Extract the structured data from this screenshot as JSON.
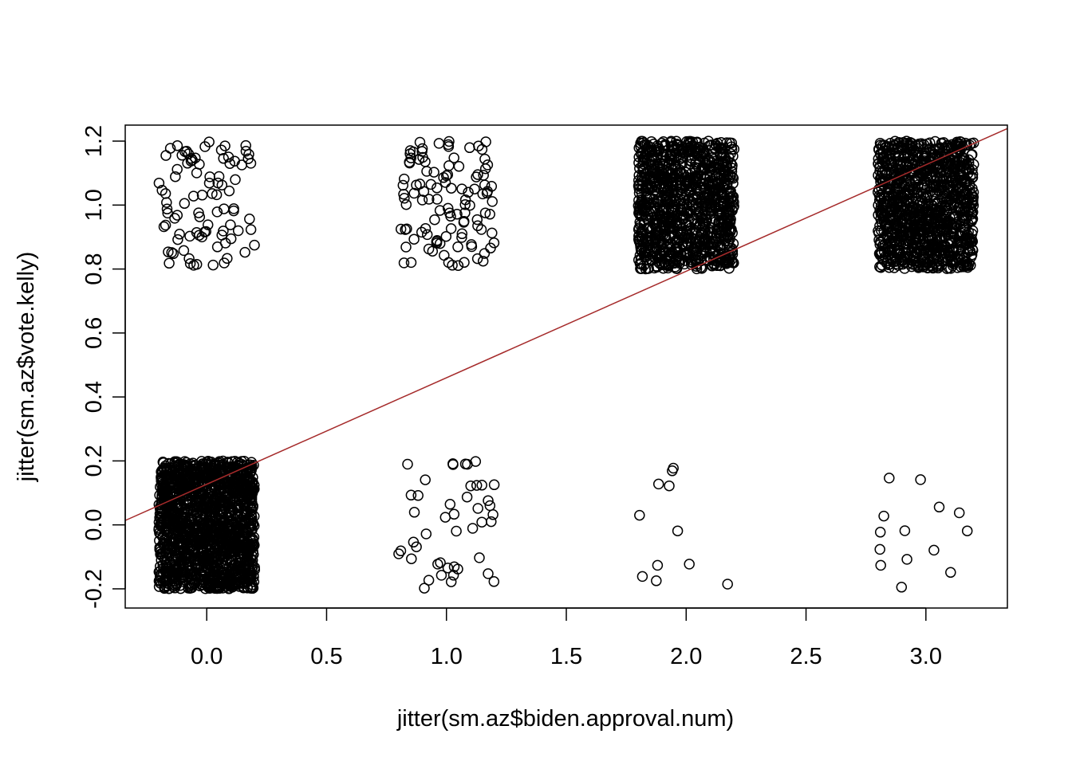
{
  "chart_data": {
    "type": "scatter",
    "title": "",
    "xlabel": "jitter(sm.az$biden.approval.num)",
    "ylabel": "jitter(sm.az$vote.kelly)",
    "xlim": [
      -0.34,
      3.34
    ],
    "ylim": [
      -0.26,
      1.25
    ],
    "x_ticks": [
      "0.0",
      "0.5",
      "1.0",
      "1.5",
      "2.0",
      "2.5",
      "3.0"
    ],
    "y_ticks": [
      "-0.2",
      "0.0",
      "0.2",
      "0.4",
      "0.6",
      "0.8",
      "1.0",
      "1.2"
    ],
    "grid": false,
    "legend": "none",
    "point_style": "open circle",
    "point_color": "#000000",
    "series": [
      {
        "values_note": "jittered clusters",
        "clusters": [
          {
            "x_center": 0,
            "y_center": 0,
            "n": 1600
          },
          {
            "x_center": 0,
            "y_center": 1,
            "n": 90
          },
          {
            "x_center": 1,
            "y_center": 0,
            "n": 45
          },
          {
            "x_center": 1,
            "y_center": 1,
            "n": 110
          },
          {
            "x_center": 2,
            "y_center": 0,
            "n": 11
          },
          {
            "x_center": 2,
            "y_center": 1,
            "n": 1100
          },
          {
            "x_center": 3,
            "y_center": 0,
            "n": 14
          },
          {
            "x_center": 3,
            "y_center": 1,
            "n": 1150
          }
        ],
        "jitter": 0.2
      }
    ],
    "fit_line": {
      "color": "#a52a2a",
      "intercept": 0.127,
      "slope": 0.333
    }
  }
}
